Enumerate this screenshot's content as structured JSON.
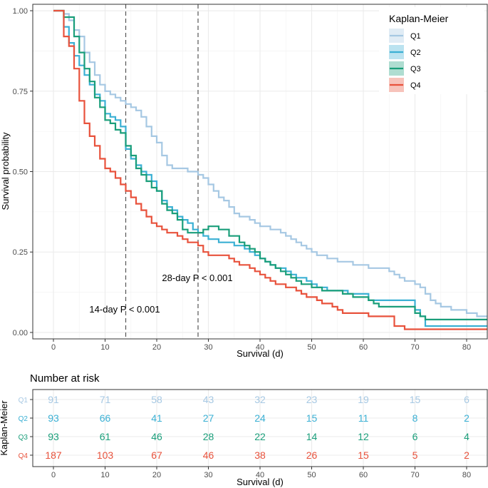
{
  "chart_data": [
    {
      "type": "line",
      "subtype": "kaplan-meier-step",
      "xlabel": "Survival (d)",
      "ylabel": "Survival probability",
      "xlim": [
        -4,
        84
      ],
      "ylim": [
        -0.02,
        1.02
      ],
      "x_ticks": [
        0,
        10,
        20,
        30,
        40,
        50,
        60,
        70,
        80
      ],
      "x_tick_labels": [
        "0",
        "10",
        "20",
        "30",
        "40",
        "50",
        "60",
        "70",
        "80"
      ],
      "y_ticks": [
        0,
        0.25,
        0.5,
        0.75,
        1
      ],
      "y_tick_labels": [
        "0.00",
        "0.25",
        "0.50",
        "0.75",
        "1.00"
      ],
      "grid": true,
      "legend": {
        "title": "Kaplan-Meier",
        "position": "top-right"
      },
      "reference_lines": [
        {
          "x": 14,
          "style": "dashed",
          "label": "14-day P < 0.001"
        },
        {
          "x": 28,
          "style": "dashed",
          "label": "28-day P < 0.001"
        }
      ],
      "series": [
        {
          "name": "Q1",
          "color": "#a6c8e3",
          "x": [
            0,
            1,
            2,
            3,
            4,
            5,
            6,
            7,
            8,
            9,
            10,
            11,
            12,
            13,
            14,
            15,
            16,
            17,
            18,
            19,
            20,
            21,
            22,
            23,
            24,
            25,
            26,
            27,
            28,
            29,
            30,
            31,
            32,
            33,
            34,
            35,
            36,
            37,
            38,
            39,
            40,
            41,
            42,
            43,
            44,
            45,
            46,
            47,
            48,
            49,
            50,
            51,
            52,
            53,
            54,
            55,
            56,
            57,
            58,
            59,
            60,
            61,
            62,
            63,
            64,
            65,
            66,
            67,
            68,
            69,
            70,
            71,
            72,
            73,
            74,
            75,
            76,
            77,
            78,
            79,
            80,
            81,
            82,
            83,
            84
          ],
          "y": [
            1.0,
            1.0,
            0.99,
            0.97,
            0.94,
            0.92,
            0.87,
            0.84,
            0.8,
            0.77,
            0.75,
            0.74,
            0.73,
            0.72,
            0.71,
            0.7,
            0.69,
            0.67,
            0.64,
            0.61,
            0.59,
            0.55,
            0.52,
            0.51,
            0.51,
            0.51,
            0.5,
            0.5,
            0.49,
            0.48,
            0.46,
            0.44,
            0.42,
            0.41,
            0.39,
            0.37,
            0.36,
            0.36,
            0.35,
            0.34,
            0.33,
            0.33,
            0.32,
            0.32,
            0.31,
            0.3,
            0.29,
            0.28,
            0.27,
            0.26,
            0.25,
            0.24,
            0.24,
            0.23,
            0.23,
            0.22,
            0.22,
            0.22,
            0.21,
            0.21,
            0.21,
            0.2,
            0.2,
            0.2,
            0.2,
            0.19,
            0.18,
            0.17,
            0.16,
            0.16,
            0.15,
            0.14,
            0.12,
            0.1,
            0.09,
            0.08,
            0.08,
            0.07,
            0.07,
            0.07,
            0.06,
            0.06,
            0.05,
            0.05,
            0.05
          ]
        },
        {
          "name": "Q2",
          "color": "#3bb0d4",
          "x": [
            0,
            1,
            2,
            3,
            4,
            5,
            6,
            7,
            8,
            9,
            10,
            11,
            12,
            13,
            14,
            15,
            16,
            17,
            18,
            19,
            20,
            21,
            22,
            23,
            24,
            25,
            26,
            27,
            28,
            29,
            30,
            31,
            32,
            33,
            34,
            35,
            36,
            37,
            38,
            39,
            40,
            41,
            42,
            43,
            44,
            45,
            46,
            47,
            48,
            49,
            50,
            51,
            52,
            53,
            54,
            55,
            56,
            57,
            58,
            59,
            60,
            61,
            62,
            63,
            64,
            65,
            66,
            67,
            68,
            69,
            70,
            71,
            72,
            73,
            74,
            75,
            76,
            77,
            78,
            79,
            80,
            81,
            82,
            83,
            84
          ],
          "y": [
            1.0,
            1.0,
            0.95,
            0.9,
            0.86,
            0.83,
            0.8,
            0.77,
            0.74,
            0.72,
            0.68,
            0.67,
            0.66,
            0.64,
            0.57,
            0.54,
            0.52,
            0.5,
            0.49,
            0.47,
            0.44,
            0.41,
            0.39,
            0.38,
            0.36,
            0.35,
            0.34,
            0.32,
            0.31,
            0.3,
            0.29,
            0.29,
            0.28,
            0.28,
            0.28,
            0.27,
            0.27,
            0.26,
            0.25,
            0.24,
            0.23,
            0.22,
            0.21,
            0.2,
            0.2,
            0.19,
            0.18,
            0.17,
            0.17,
            0.16,
            0.15,
            0.14,
            0.14,
            0.13,
            0.13,
            0.13,
            0.13,
            0.12,
            0.12,
            0.12,
            0.12,
            0.1,
            0.1,
            0.1,
            0.1,
            0.1,
            0.1,
            0.1,
            0.1,
            0.1,
            0.07,
            0.05,
            0.02,
            0.02,
            0.02,
            0.02,
            0.02,
            0.02,
            0.02,
            0.02,
            0.02,
            0.02,
            0.02,
            0.02,
            0.02
          ]
        },
        {
          "name": "Q3",
          "color": "#1a9e7a",
          "x": [
            0,
            1,
            2,
            3,
            4,
            5,
            6,
            7,
            8,
            9,
            10,
            11,
            12,
            13,
            14,
            15,
            16,
            17,
            18,
            19,
            20,
            21,
            22,
            23,
            24,
            25,
            26,
            27,
            28,
            29,
            30,
            31,
            32,
            33,
            34,
            35,
            36,
            37,
            38,
            39,
            40,
            41,
            42,
            43,
            44,
            45,
            46,
            47,
            48,
            49,
            50,
            51,
            52,
            53,
            54,
            55,
            56,
            57,
            58,
            59,
            60,
            61,
            62,
            63,
            64,
            65,
            66,
            67,
            68,
            69,
            70,
            71,
            72,
            73,
            74,
            75,
            76,
            77,
            78,
            79,
            80,
            81,
            82,
            83,
            84
          ],
          "y": [
            1.0,
            1.0,
            0.98,
            0.98,
            0.92,
            0.87,
            0.82,
            0.78,
            0.73,
            0.7,
            0.66,
            0.65,
            0.63,
            0.62,
            0.58,
            0.55,
            0.51,
            0.49,
            0.47,
            0.45,
            0.44,
            0.4,
            0.38,
            0.37,
            0.35,
            0.32,
            0.31,
            0.31,
            0.31,
            0.32,
            0.33,
            0.33,
            0.32,
            0.32,
            0.3,
            0.3,
            0.28,
            0.27,
            0.26,
            0.25,
            0.23,
            0.22,
            0.21,
            0.2,
            0.19,
            0.18,
            0.17,
            0.16,
            0.15,
            0.15,
            0.14,
            0.14,
            0.13,
            0.13,
            0.13,
            0.13,
            0.12,
            0.12,
            0.11,
            0.11,
            0.11,
            0.1,
            0.09,
            0.08,
            0.08,
            0.08,
            0.08,
            0.08,
            0.08,
            0.08,
            0.06,
            0.05,
            0.04,
            0.04,
            0.04,
            0.04,
            0.04,
            0.04,
            0.04,
            0.04,
            0.04,
            0.04,
            0.04,
            0.04,
            0.04
          ]
        },
        {
          "name": "Q4",
          "color": "#e8523c",
          "x": [
            0,
            1,
            2,
            3,
            4,
            5,
            6,
            7,
            8,
            9,
            10,
            11,
            12,
            13,
            14,
            15,
            16,
            17,
            18,
            19,
            20,
            21,
            22,
            23,
            24,
            25,
            26,
            27,
            28,
            29,
            30,
            31,
            32,
            33,
            34,
            35,
            36,
            37,
            38,
            39,
            40,
            41,
            42,
            43,
            44,
            45,
            46,
            47,
            48,
            49,
            50,
            51,
            52,
            53,
            54,
            55,
            56,
            57,
            58,
            59,
            60,
            61,
            62,
            63,
            64,
            65,
            66,
            67,
            68,
            69,
            70,
            71,
            72,
            73,
            74,
            75,
            76,
            77,
            78,
            79,
            80,
            81,
            82,
            83,
            84
          ],
          "y": [
            1.0,
            1.0,
            0.92,
            0.89,
            0.82,
            0.72,
            0.65,
            0.61,
            0.58,
            0.54,
            0.51,
            0.5,
            0.48,
            0.46,
            0.44,
            0.42,
            0.4,
            0.38,
            0.36,
            0.34,
            0.33,
            0.32,
            0.31,
            0.31,
            0.3,
            0.29,
            0.28,
            0.28,
            0.27,
            0.25,
            0.24,
            0.24,
            0.24,
            0.24,
            0.23,
            0.22,
            0.21,
            0.21,
            0.2,
            0.19,
            0.18,
            0.17,
            0.16,
            0.15,
            0.15,
            0.14,
            0.14,
            0.13,
            0.12,
            0.11,
            0.11,
            0.1,
            0.09,
            0.09,
            0.08,
            0.07,
            0.06,
            0.06,
            0.06,
            0.06,
            0.06,
            0.05,
            0.05,
            0.05,
            0.05,
            0.05,
            0.02,
            0.02,
            0.01,
            0.01,
            0.01,
            0.01,
            0.01,
            0.01,
            0.01,
            0.01,
            0.01,
            0.01,
            0.01,
            0.01,
            0.01,
            0.01,
            0.01,
            0.01,
            0.01
          ]
        }
      ]
    },
    {
      "type": "table",
      "title": "Number at risk",
      "xlabel": "Survival (d)",
      "ylabel": "Kaplan-Meier",
      "x_ticks": [
        0,
        10,
        20,
        30,
        40,
        50,
        60,
        70,
        80
      ],
      "x_tick_labels": [
        "0",
        "10",
        "20",
        "30",
        "40",
        "50",
        "60",
        "70",
        "80"
      ],
      "rows": [
        {
          "name": "Q1",
          "color": "#a6c8e3",
          "values": [
            91,
            71,
            58,
            43,
            32,
            23,
            19,
            15,
            6
          ]
        },
        {
          "name": "Q2",
          "color": "#3bb0d4",
          "values": [
            93,
            66,
            41,
            27,
            24,
            15,
            11,
            8,
            2
          ]
        },
        {
          "name": "Q3",
          "color": "#1a9e7a",
          "values": [
            93,
            61,
            46,
            28,
            22,
            14,
            12,
            6,
            4
          ]
        },
        {
          "name": "Q4",
          "color": "#e8523c",
          "values": [
            187,
            103,
            67,
            46,
            38,
            26,
            15,
            5,
            2
          ]
        }
      ]
    }
  ]
}
